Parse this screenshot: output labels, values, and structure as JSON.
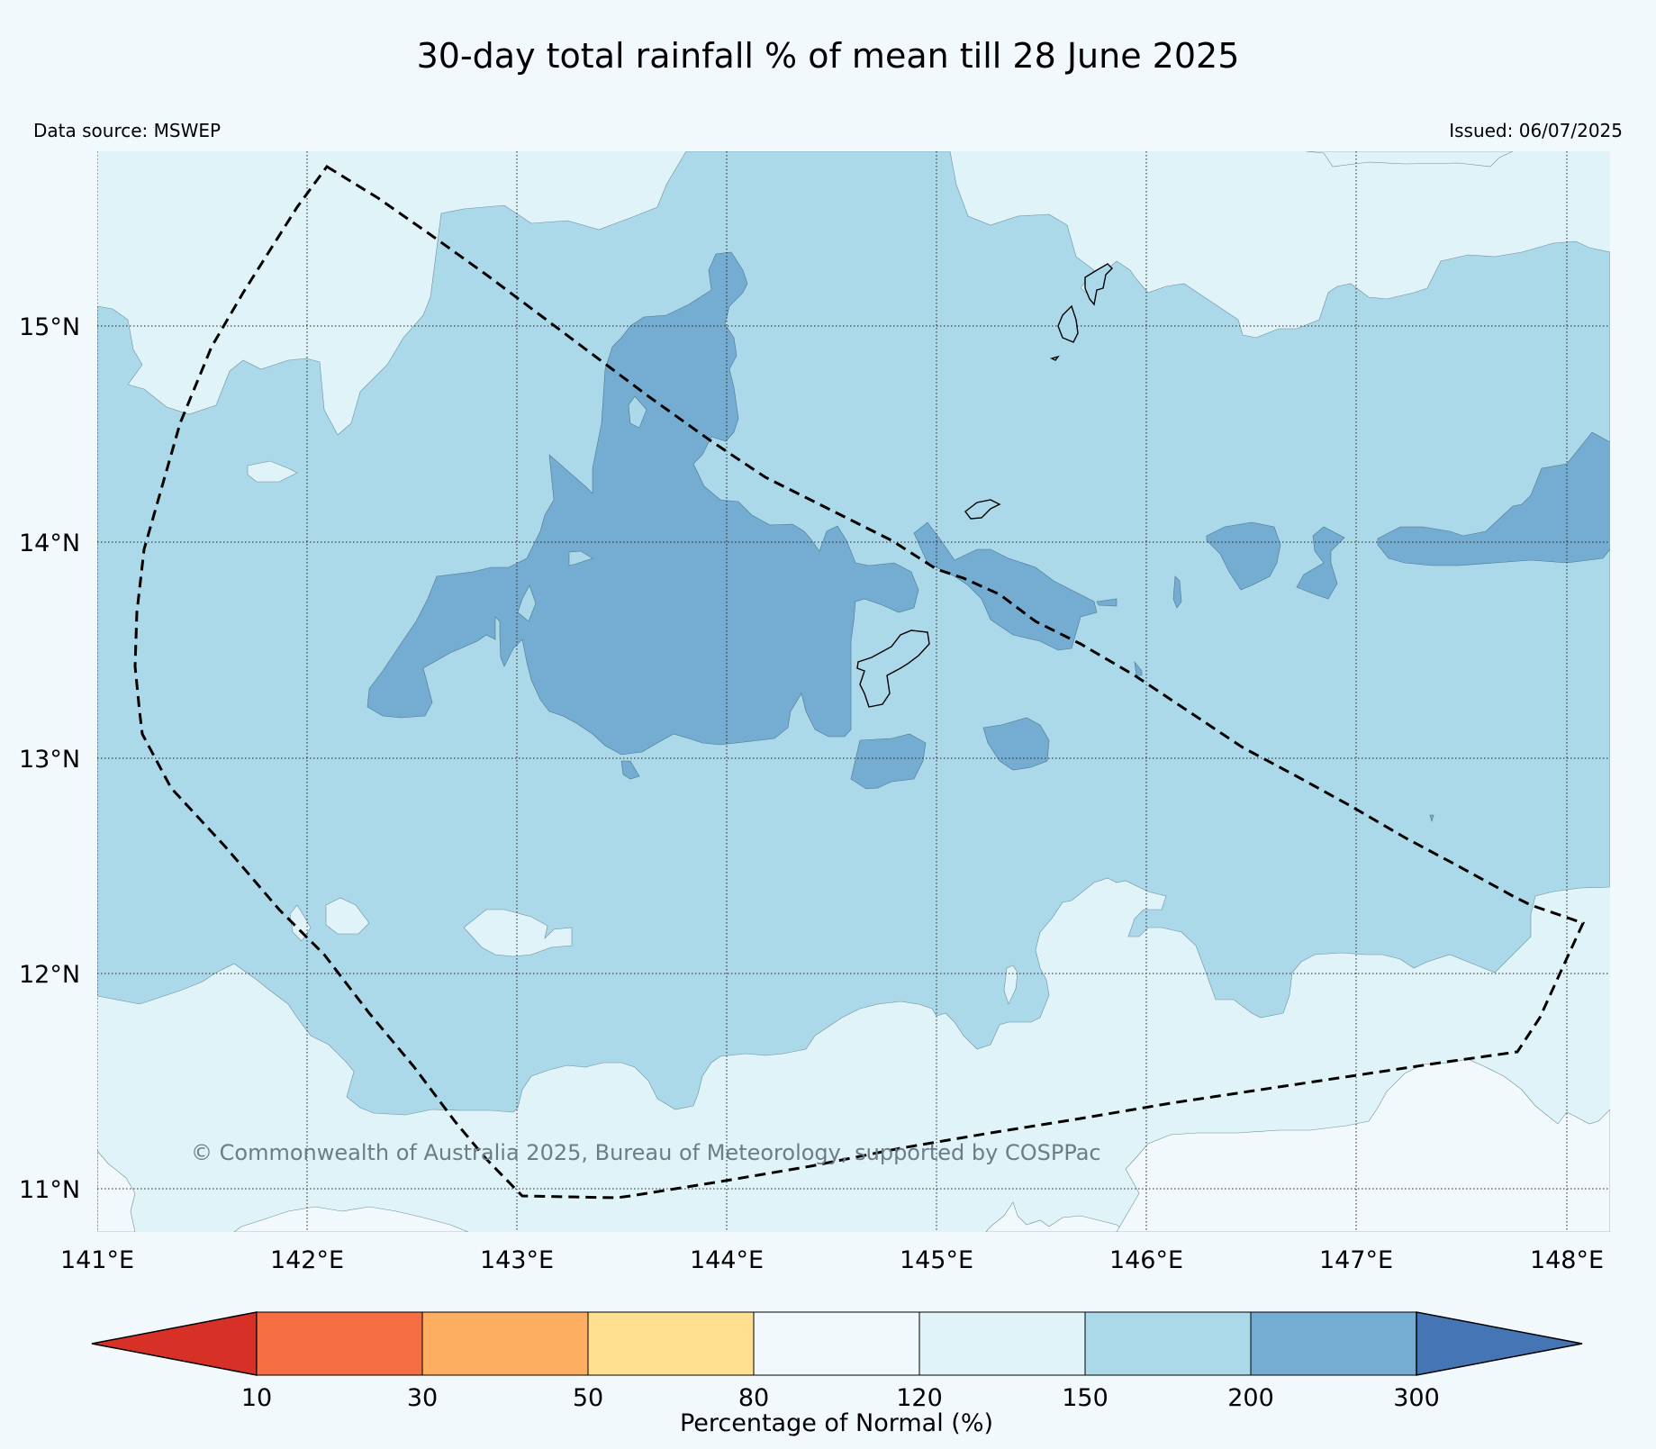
{
  "title": "30-day total rainfall % of mean till 28 June 2025",
  "data_source": "Data source: MSWEP",
  "issued": "Issued: 06/07/2025",
  "copyright": "© Commonwealth of Australia 2025, Bureau of Meteorology, supported by COSPPac",
  "map": {
    "lon_labels": [
      "141°E",
      "142°E",
      "143°E",
      "144°E",
      "145°E",
      "146°E",
      "147°E",
      "148°E"
    ],
    "lat_labels": [
      "15°N",
      "14°N",
      "13°N",
      "12°N",
      "11°N"
    ],
    "lon_values": [
      141,
      142,
      143,
      144,
      145,
      146,
      147,
      148
    ],
    "lat_values": [
      15,
      14,
      13,
      12,
      11
    ],
    "lon_range": [
      141,
      148.2
    ],
    "lat_range": [
      10.8,
      15.8
    ],
    "gridlines": true,
    "region_boundary": "dashed",
    "colors": {
      "background": "#f2f9fc",
      "pct_120_150": "#e0f3f8",
      "pct_150_200": "#abd9e9",
      "pct_200_300": "#74add1"
    }
  },
  "colorbar": {
    "label": "Percentage of Normal (%)",
    "ticks": [
      "10",
      "30",
      "50",
      "80",
      "120",
      "150",
      "200",
      "300"
    ],
    "colors": [
      "#d73027",
      "#f46d43",
      "#fdae61",
      "#fee090",
      "#f2f9fc",
      "#e0f3f8",
      "#abd9e9",
      "#74add1",
      "#4575b4"
    ],
    "extend": "both"
  }
}
